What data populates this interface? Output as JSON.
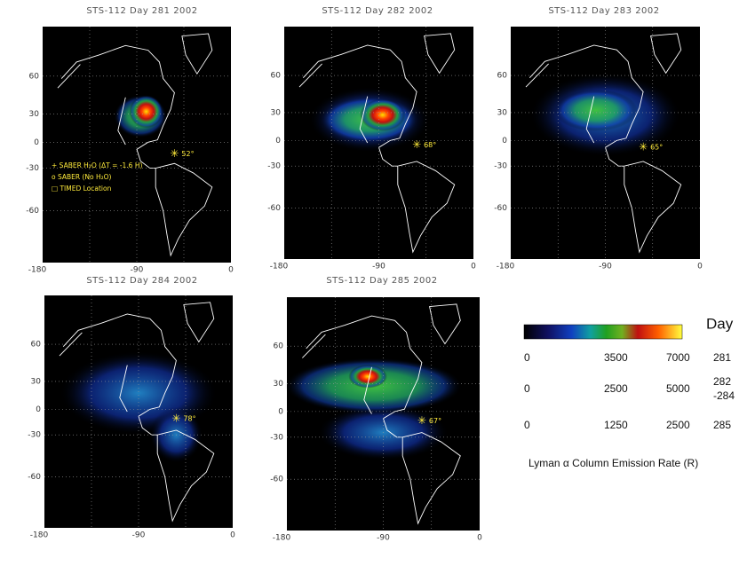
{
  "panels": [
    {
      "title": "STS-112   Day 281   2002",
      "lat_ticks": [
        "60",
        "30",
        "0",
        "-30",
        "-60"
      ],
      "lon_ticks": [
        "-180",
        "-90",
        "0"
      ],
      "annotation": "52°",
      "legend": [
        "+ SABER H₂O (ΔT = -1.6 H)",
        "o SABER (No H₂O)",
        "□ TIMED Location"
      ]
    },
    {
      "title": "STS-112   Day 282   2002",
      "lat_ticks": [
        "60",
        "30",
        "0",
        "-30",
        "-60"
      ],
      "lon_ticks": [
        "-180",
        "-90",
        "0"
      ],
      "annotation": "68°"
    },
    {
      "title": "STS-112   Day 283   2002",
      "lat_ticks": [
        "60",
        "30",
        "0",
        "-30",
        "-60"
      ],
      "lon_ticks": [
        "-180",
        "-90",
        "0"
      ],
      "annotation": "65°"
    },
    {
      "title": "STS-112   Day 284   2002",
      "lat_ticks": [
        "60",
        "30",
        "0",
        "-30",
        "-60"
      ],
      "lon_ticks": [
        "-180",
        "-90",
        "0"
      ],
      "annotation": "78°"
    },
    {
      "title": "STS-112   Day 285   2002",
      "lat_ticks": [
        "60",
        "30",
        "0",
        "-30",
        "-60"
      ],
      "lon_ticks": [
        "-180",
        "-90",
        "0"
      ],
      "annotation": "67°"
    }
  ],
  "colorbar": {
    "header": "Day",
    "rows": [
      {
        "min": "0",
        "mid": "3500",
        "max": "7000",
        "day": "281"
      },
      {
        "min": "0",
        "mid": "2500",
        "max": "5000",
        "day": [
          "282",
          "-284"
        ]
      },
      {
        "min": "0",
        "mid": "1250",
        "max": "2500",
        "day": "285"
      }
    ],
    "caption": "Lyman α  Column Emission Rate (R)"
  }
}
